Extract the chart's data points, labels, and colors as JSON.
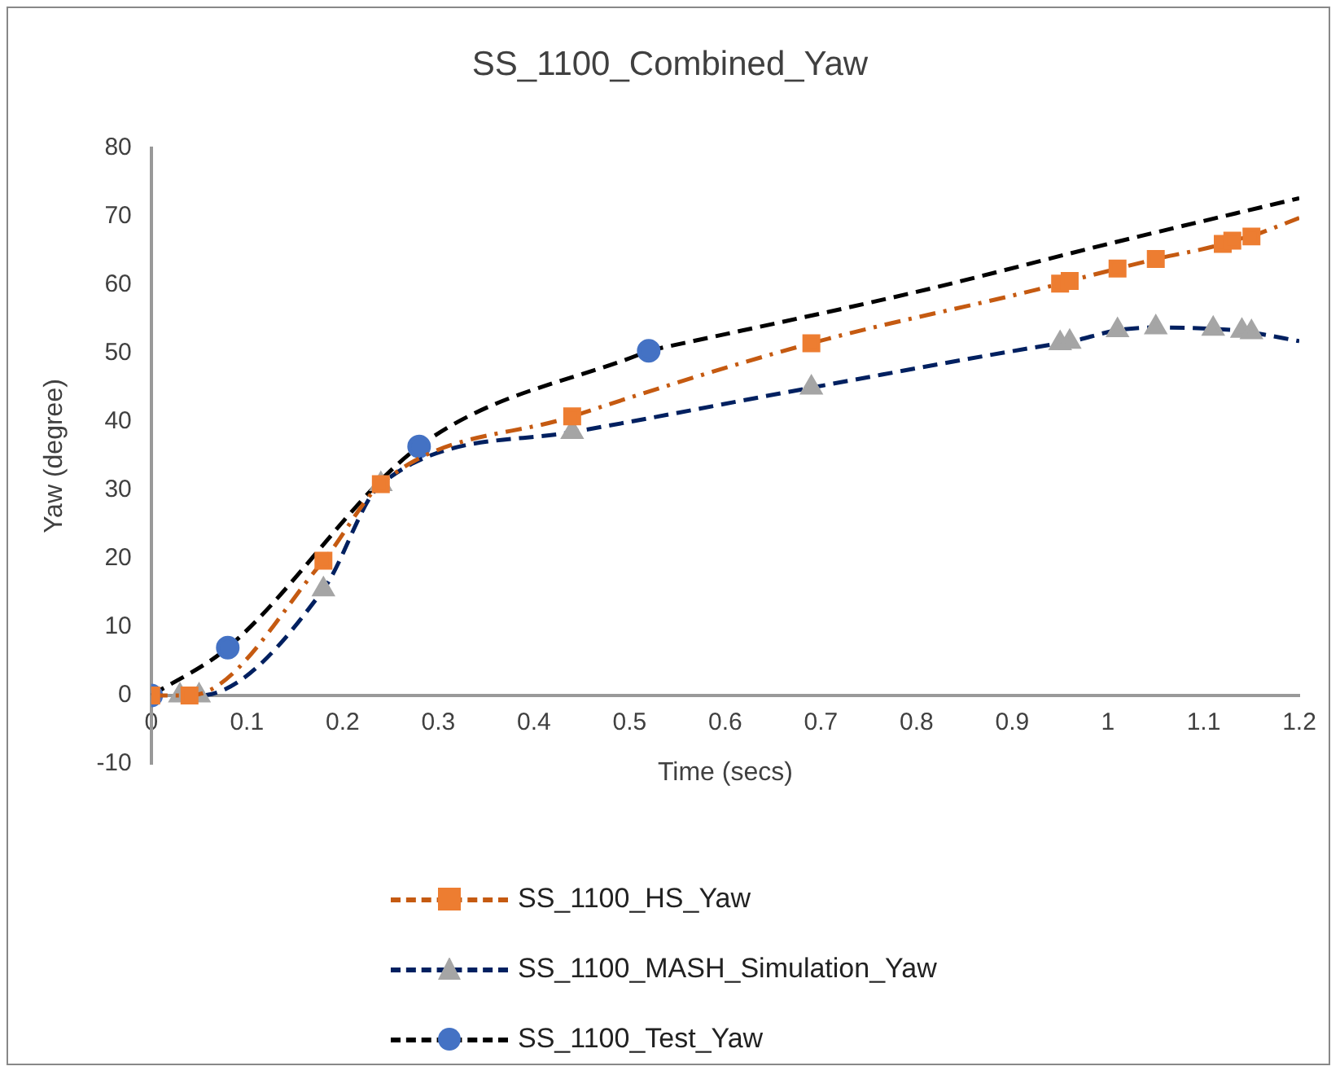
{
  "chart_data": {
    "type": "line",
    "title": "SS_1100_Combined_Yaw",
    "xlabel": "Time (secs)",
    "ylabel": "Yaw (degree)",
    "xlim": [
      0,
      1.2
    ],
    "xticks": [
      0,
      0.1,
      0.2,
      0.3,
      0.4,
      0.5,
      0.6,
      0.7,
      0.8,
      0.9,
      1,
      1.1,
      1.2
    ],
    "ylim": [
      -10,
      80
    ],
    "yticks": [
      -10,
      0,
      10,
      20,
      30,
      40,
      50,
      60,
      70,
      80
    ],
    "grid": false,
    "legend": "bottom",
    "series": [
      {
        "name": "SS_1100_HS_Yaw",
        "color": "#c55a11",
        "marker": "square",
        "line_style": "dashdot",
        "x": [
          0,
          0.04,
          0.18,
          0.24,
          0.44,
          0.69,
          0.95,
          0.96,
          1.01,
          1.05,
          1.12,
          1.13,
          1.15
        ],
        "values": [
          0,
          0,
          19.7,
          30.9,
          40.8,
          51.5,
          60.2,
          60.6,
          62.4,
          63.8,
          66,
          66.5,
          67.1
        ],
        "colors": [
          "#ed7d31",
          "#ed7d31",
          "#ed7d31",
          "#ed7d31",
          "#ed7d31",
          "#ed7d31",
          "#ed7d31",
          "#ed7d31",
          "#ed7d31",
          "#ed7d31",
          "#ed7d31",
          "#ed7d31",
          "#ed7d31"
        ]
      },
      {
        "name": "SS_1100_MASH_Simulation_Yaw",
        "color": "#002060",
        "marker": "triangle",
        "line_style": "dashed",
        "x": [
          0.03,
          0.05,
          0.18,
          0.24,
          0.44,
          0.69,
          0.95,
          0.96,
          1.01,
          1.05,
          1.11,
          1.14,
          1.15
        ],
        "values": [
          0,
          0,
          15.5,
          30.9,
          38.5,
          45,
          51.5,
          51.7,
          53.4,
          53.8,
          53.6,
          53.3,
          53.1
        ],
        "colors": [
          "#a5a5a5",
          "#a5a5a5",
          "#a5a5a5",
          "#a5a5a5",
          "#a5a5a5",
          "#a5a5a5",
          "#a5a5a5",
          "#a5a5a5",
          "#a5a5a5",
          "#a5a5a5",
          "#a5a5a5",
          "#a5a5a5",
          "#a5a5a5"
        ]
      },
      {
        "name": "SS_1100_Test_Yaw",
        "color": "#000000",
        "marker": "circle",
        "line_style": "dashed",
        "x": [
          0,
          0.08,
          0.28,
          0.52
        ],
        "values": [
          0,
          7,
          36.4,
          50.4
        ],
        "colors": [
          "#4472c4",
          "#4472c4",
          "#4472c4",
          "#4472c4"
        ]
      },
      {
        "color": "#c55a11",
        "marker": "none",
        "line_style": "dashdot",
        "x": [
          1.15,
          1.2
        ],
        "values": [
          67.1,
          69.8
        ]
      },
      {
        "color": "#002060",
        "marker": "none",
        "line_style": "dashed",
        "x": [
          1.15,
          1.2
        ],
        "values": [
          53.1,
          51.8
        ]
      },
      {
        "color": "#000000",
        "marker": "none",
        "line_style": "dashed",
        "x": [
          0.52,
          0.8,
          1,
          1.2
        ],
        "values": [
          50.4,
          59,
          66,
          72.7
        ]
      }
    ]
  }
}
